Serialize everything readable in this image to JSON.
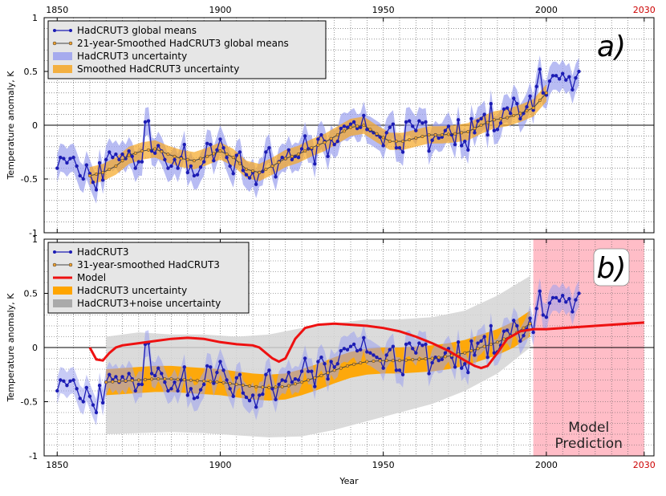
{
  "chart_data": {
    "type": "line",
    "xlabel": "Year",
    "ylabel": "Temperature anomaly, K",
    "xlim": [
      1846,
      2033
    ],
    "x_ticks": [
      1850,
      1900,
      1950,
      2000,
      2030
    ],
    "x_tick_labels": [
      "1850",
      "1900",
      "1950",
      "2000",
      "2030"
    ],
    "y_ticks": [
      -1,
      -0.5,
      0,
      0.5,
      1
    ],
    "y_tick_labels": [
      "-1",
      "-0.5",
      "0",
      "0.5",
      "1"
    ],
    "ylim": [
      -1,
      1
    ],
    "colors": {
      "raw": "#1c1cb4",
      "smooth": "#444444",
      "smooth_marker": "#f2a330",
      "model": "#ee1111",
      "band_raw": "#9aa0ee",
      "band_smooth": "#f5a623",
      "band_smooth_b": "#ffa500",
      "band_noise": "#d5d5d5",
      "prediction_zone": "#ffb6c1",
      "accent_tick": "#cc0000"
    },
    "hadcrut3": {
      "years": [
        1850,
        1851,
        1852,
        1853,
        1854,
        1855,
        1856,
        1857,
        1858,
        1859,
        1860,
        1861,
        1862,
        1863,
        1864,
        1865,
        1866,
        1867,
        1868,
        1869,
        1870,
        1871,
        1872,
        1873,
        1874,
        1875,
        1876,
        1877,
        1878,
        1879,
        1880,
        1881,
        1882,
        1883,
        1884,
        1885,
        1886,
        1887,
        1888,
        1889,
        1890,
        1891,
        1892,
        1893,
        1894,
        1895,
        1896,
        1897,
        1898,
        1899,
        1900,
        1901,
        1902,
        1903,
        1904,
        1905,
        1906,
        1907,
        1908,
        1909,
        1910,
        1911,
        1912,
        1913,
        1914,
        1915,
        1916,
        1917,
        1918,
        1919,
        1920,
        1921,
        1922,
        1923,
        1924,
        1925,
        1926,
        1927,
        1928,
        1929,
        1930,
        1931,
        1932,
        1933,
        1934,
        1935,
        1936,
        1937,
        1938,
        1939,
        1940,
        1941,
        1942,
        1943,
        1944,
        1945,
        1946,
        1947,
        1948,
        1949,
        1950,
        1951,
        1952,
        1953,
        1954,
        1955,
        1956,
        1957,
        1958,
        1959,
        1960,
        1961,
        1962,
        1963,
        1964,
        1965,
        1966,
        1967,
        1968,
        1969,
        1970,
        1971,
        1972,
        1973,
        1974,
        1975,
        1976,
        1977,
        1978,
        1979,
        1980,
        1981,
        1982,
        1983,
        1984,
        1985,
        1986,
        1987,
        1988,
        1989,
        1990,
        1991,
        1992,
        1993,
        1994,
        1995,
        1996,
        1997,
        1998,
        1999,
        2000,
        2001,
        2002,
        2003,
        2004,
        2005,
        2006,
        2007,
        2008,
        2009,
        2010
      ],
      "values": [
        -0.4,
        -0.3,
        -0.31,
        -0.35,
        -0.31,
        -0.3,
        -0.38,
        -0.47,
        -0.5,
        -0.37,
        -0.45,
        -0.53,
        -0.6,
        -0.35,
        -0.51,
        -0.32,
        -0.25,
        -0.3,
        -0.27,
        -0.32,
        -0.27,
        -0.31,
        -0.24,
        -0.29,
        -0.4,
        -0.34,
        -0.34,
        0.03,
        0.04,
        -0.24,
        -0.26,
        -0.19,
        -0.24,
        -0.32,
        -0.4,
        -0.38,
        -0.32,
        -0.4,
        -0.3,
        -0.18,
        -0.44,
        -0.38,
        -0.47,
        -0.46,
        -0.39,
        -0.34,
        -0.17,
        -0.18,
        -0.33,
        -0.23,
        -0.13,
        -0.21,
        -0.3,
        -0.38,
        -0.45,
        -0.28,
        -0.25,
        -0.42,
        -0.46,
        -0.49,
        -0.44,
        -0.55,
        -0.44,
        -0.43,
        -0.25,
        -0.21,
        -0.38,
        -0.48,
        -0.34,
        -0.3,
        -0.31,
        -0.23,
        -0.32,
        -0.29,
        -0.3,
        -0.22,
        -0.1,
        -0.22,
        -0.22,
        -0.36,
        -0.13,
        -0.09,
        -0.15,
        -0.29,
        -0.13,
        -0.18,
        -0.15,
        -0.03,
        -0.01,
        -0.02,
        0.01,
        0.03,
        -0.03,
        -0.02,
        0.09,
        -0.04,
        -0.05,
        -0.07,
        -0.09,
        -0.11,
        -0.19,
        -0.07,
        -0.02,
        0.01,
        -0.21,
        -0.21,
        -0.25,
        0.03,
        0.04,
        -0.01,
        -0.05,
        0.04,
        0.02,
        0.03,
        -0.24,
        -0.14,
        -0.09,
        -0.12,
        -0.11,
        -0.05,
        -0.01,
        -0.09,
        -0.18,
        0.05,
        -0.19,
        -0.15,
        -0.23,
        0.06,
        -0.07,
        0.04,
        0.06,
        0.1,
        -0.09,
        0.2,
        -0.05,
        -0.04,
        0.02,
        0.15,
        0.16,
        0.11,
        0.25,
        0.2,
        0.06,
        0.11,
        0.17,
        0.27,
        0.14,
        0.36,
        0.52,
        0.3,
        0.28,
        0.41,
        0.46,
        0.46,
        0.43,
        0.48,
        0.42,
        0.45,
        0.33,
        0.44,
        0.5
      ]
    },
    "panel_a": {
      "panel_label": "a)",
      "legend": [
        "HadCRUT3 global means",
        "21-year-Smoothed HadCRUT3 global means",
        "HadCRUT3 uncertainty",
        "Smoothed HadCRUT3 uncertainty"
      ],
      "smoothed_years": [
        1860,
        1864,
        1868,
        1872,
        1876,
        1880,
        1884,
        1888,
        1892,
        1896,
        1900,
        1904,
        1908,
        1912,
        1916,
        1920,
        1924,
        1928,
        1932,
        1936,
        1940,
        1944,
        1948,
        1952,
        1956,
        1960,
        1964,
        1968,
        1972,
        1976,
        1980,
        1984,
        1988,
        1992,
        1996,
        2000
      ],
      "smoothed_values": [
        -0.47,
        -0.44,
        -0.38,
        -0.28,
        -0.24,
        -0.22,
        -0.27,
        -0.31,
        -0.33,
        -0.29,
        -0.24,
        -0.3,
        -0.41,
        -0.44,
        -0.38,
        -0.31,
        -0.27,
        -0.21,
        -0.16,
        -0.09,
        -0.02,
        0.0,
        -0.08,
        -0.15,
        -0.15,
        -0.12,
        -0.09,
        -0.09,
        -0.08,
        -0.06,
        0.0,
        0.05,
        0.07,
        0.11,
        0.16,
        0.3
      ],
      "band_raw_halfwidth": 0.13,
      "band_smooth_halfwidth": 0.08
    },
    "panel_b": {
      "panel_label": "b)",
      "legend": [
        "HadCRUT3",
        "31-year-smoothed HadCRUT3",
        "Model",
        "HadCRUT3 uncertainty",
        "HadCRUT3+noise uncertainty"
      ],
      "prediction_label_line1": "Model",
      "prediction_label_line2": "Prediction",
      "prediction_range": [
        1996,
        2030
      ],
      "smoothed_years": [
        1865,
        1870,
        1875,
        1880,
        1885,
        1890,
        1895,
        1900,
        1905,
        1910,
        1915,
        1920,
        1925,
        1930,
        1935,
        1940,
        1945,
        1950,
        1955,
        1960,
        1965,
        1970,
        1975,
        1980,
        1985,
        1990,
        1995
      ],
      "smoothed_values": [
        -0.32,
        -0.31,
        -0.3,
        -0.29,
        -0.29,
        -0.3,
        -0.31,
        -0.32,
        -0.34,
        -0.36,
        -0.37,
        -0.36,
        -0.32,
        -0.27,
        -0.21,
        -0.16,
        -0.13,
        -0.12,
        -0.12,
        -0.11,
        -0.1,
        -0.08,
        -0.05,
        0.0,
        0.05,
        0.12,
        0.22
      ],
      "band_smooth_halfwidth": 0.12,
      "noise_years": [
        1865,
        1875,
        1885,
        1895,
        1905,
        1915,
        1925,
        1935,
        1945,
        1955,
        1965,
        1975,
        1985,
        1995
      ],
      "noise_upper": [
        0.1,
        0.14,
        0.12,
        0.12,
        0.1,
        0.12,
        0.18,
        0.22,
        0.26,
        0.26,
        0.28,
        0.34,
        0.48,
        0.66
      ],
      "noise_lower": [
        -0.8,
        -0.79,
        -0.78,
        -0.79,
        -0.81,
        -0.83,
        -0.82,
        -0.76,
        -0.68,
        -0.6,
        -0.52,
        -0.4,
        -0.24,
        0.0
      ],
      "model_years": [
        1860,
        1862,
        1864,
        1866,
        1868,
        1870,
        1875,
        1880,
        1885,
        1890,
        1895,
        1900,
        1905,
        1910,
        1912,
        1914,
        1916,
        1918,
        1920,
        1923,
        1926,
        1930,
        1935,
        1940,
        1945,
        1950,
        1955,
        1960,
        1965,
        1970,
        1975,
        1978,
        1980,
        1982,
        1985,
        1988,
        1992,
        1996,
        2000,
        2005,
        2010,
        2015,
        2020,
        2025,
        2030
      ],
      "model_values": [
        0.0,
        -0.11,
        -0.12,
        -0.05,
        0.0,
        0.02,
        0.04,
        0.06,
        0.08,
        0.09,
        0.08,
        0.05,
        0.03,
        0.02,
        0.0,
        -0.05,
        -0.1,
        -0.13,
        -0.1,
        0.08,
        0.18,
        0.21,
        0.22,
        0.21,
        0.2,
        0.18,
        0.15,
        0.1,
        0.04,
        -0.03,
        -0.12,
        -0.17,
        -0.19,
        -0.17,
        -0.05,
        0.08,
        0.15,
        0.17,
        0.17,
        0.18,
        0.19,
        0.2,
        0.21,
        0.22,
        0.23
      ]
    }
  }
}
